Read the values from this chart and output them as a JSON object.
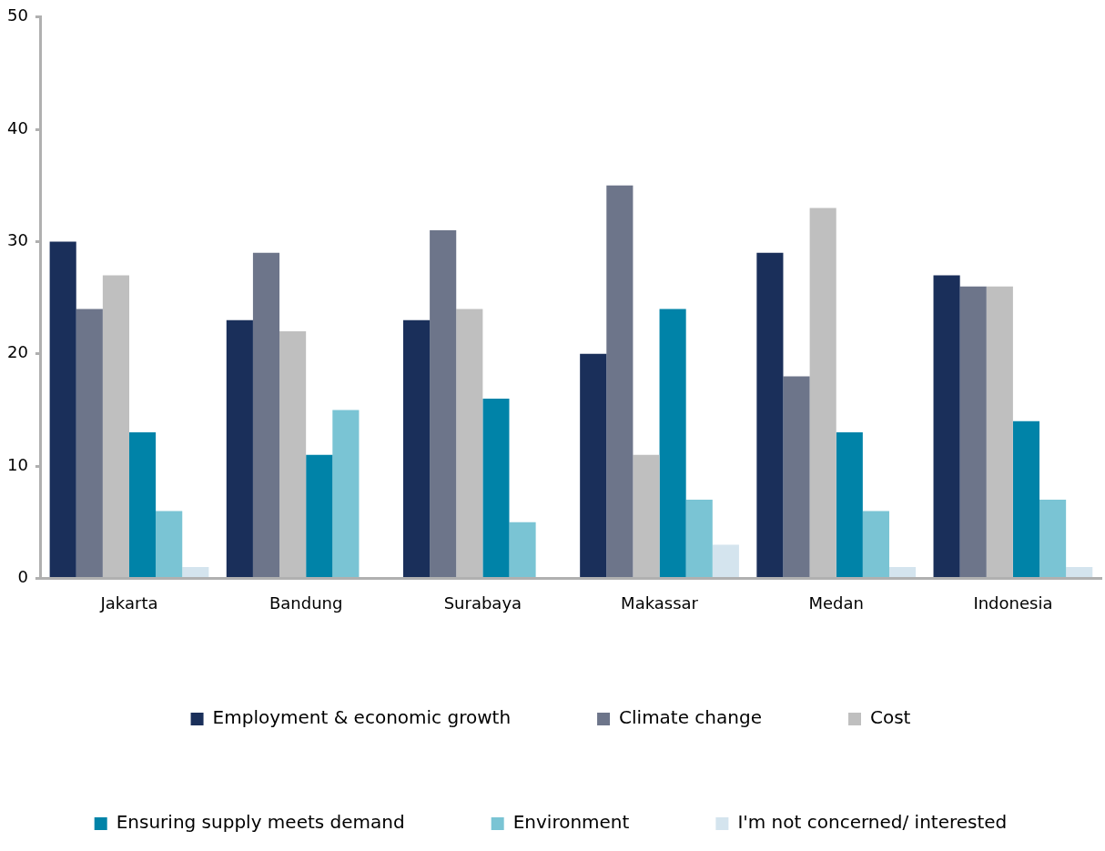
{
  "chart_data": {
    "type": "bar",
    "categories": [
      "Jakarta",
      "Bandung",
      "Surabaya",
      "Makassar",
      "Medan",
      "Indonesia"
    ],
    "series": [
      {
        "name": "Employment & economic growth",
        "color": "#1a2f5a",
        "values": [
          30,
          23,
          23,
          20,
          29,
          27
        ]
      },
      {
        "name": "Climate change",
        "color": "#6d758a",
        "values": [
          24,
          29,
          31,
          35,
          18,
          26
        ]
      },
      {
        "name": "Cost",
        "color": "#bfbfbf",
        "values": [
          27,
          22,
          24,
          11,
          33,
          26
        ]
      },
      {
        "name": "Ensuring supply meets demand",
        "color": "#0083a8",
        "values": [
          13,
          11,
          16,
          24,
          13,
          14
        ]
      },
      {
        "name": "Environment",
        "color": "#7ac4d4",
        "values": [
          6,
          15,
          5,
          7,
          6,
          7
        ]
      },
      {
        "name": "I'm not concerned/ interested",
        "color": "#d4e4ee",
        "values": [
          1,
          0,
          0,
          3,
          1,
          1
        ]
      }
    ],
    "ylim": [
      0,
      50
    ],
    "yticks": [
      0,
      10,
      20,
      30,
      40,
      50
    ],
    "grid": false,
    "legend": "bottom"
  }
}
